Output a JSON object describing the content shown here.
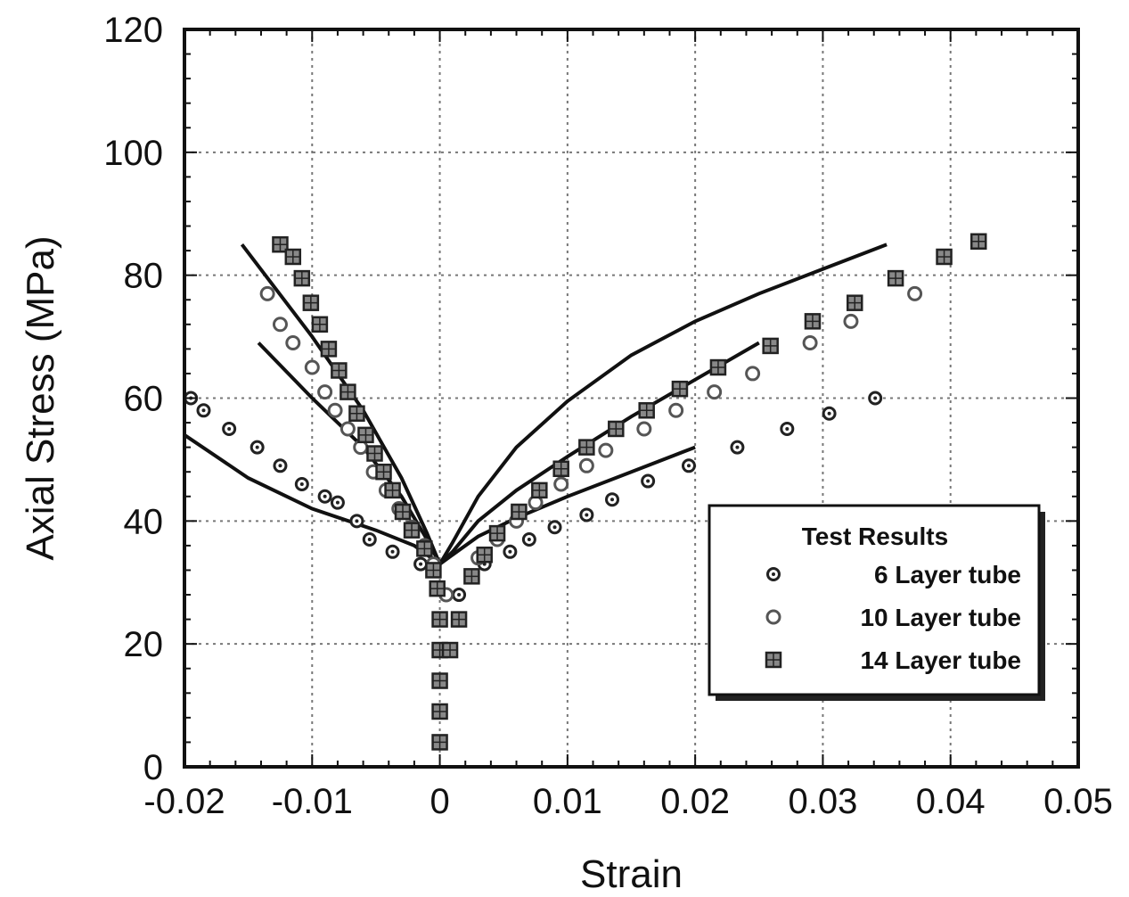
{
  "chart_data": {
    "type": "scatter",
    "xlabel": "Strain",
    "ylabel": "Axial Stress (MPa)",
    "xlim": [
      -0.02,
      0.05
    ],
    "ylim": [
      0,
      120
    ],
    "xticks": [
      -0.02,
      -0.01,
      0,
      0.01,
      0.02,
      0.03,
      0.04,
      0.05
    ],
    "xtick_labels": [
      "-0.02",
      "-0.01",
      "0",
      "0.01",
      "0.02",
      "0.03",
      "0.04",
      "0.05"
    ],
    "yticks": [
      0,
      20,
      40,
      60,
      80,
      100,
      120
    ],
    "ytick_labels": [
      "0",
      "20",
      "40",
      "60",
      "80",
      "100",
      "120"
    ],
    "grid": true,
    "legend": {
      "title": "Test Results",
      "placement": "lower-right",
      "entries": [
        "6 Layer tube",
        "10 Layer tube",
        "14 Layer tube"
      ]
    },
    "series": [
      {
        "name": "6 Layer tube",
        "marker": "dot-circle",
        "points": [
          [
            -0.0195,
            60
          ],
          [
            -0.0185,
            58
          ],
          [
            -0.0165,
            55
          ],
          [
            -0.0143,
            52
          ],
          [
            -0.0125,
            49
          ],
          [
            -0.0108,
            46
          ],
          [
            -0.009,
            44
          ],
          [
            -0.008,
            43
          ],
          [
            -0.0065,
            40
          ],
          [
            -0.0055,
            37
          ],
          [
            -0.0037,
            35
          ],
          [
            -0.0015,
            33
          ],
          [
            0.0015,
            28
          ],
          [
            0.0025,
            31
          ],
          [
            0.0035,
            33
          ],
          [
            0.0055,
            35
          ],
          [
            0.007,
            37
          ],
          [
            0.009,
            39
          ],
          [
            0.0115,
            41
          ],
          [
            0.0135,
            43.5
          ],
          [
            0.0163,
            46.5
          ],
          [
            0.0195,
            49
          ],
          [
            0.0233,
            52
          ],
          [
            0.0272,
            55
          ],
          [
            0.0305,
            57.5
          ],
          [
            0.0341,
            60
          ]
        ]
      },
      {
        "name": "10 Layer tube",
        "marker": "open-circle",
        "points": [
          [
            -0.0135,
            77
          ],
          [
            -0.0125,
            72
          ],
          [
            -0.0115,
            69
          ],
          [
            -0.01,
            65
          ],
          [
            -0.009,
            61
          ],
          [
            -0.0082,
            58
          ],
          [
            -0.0072,
            55
          ],
          [
            -0.0062,
            52
          ],
          [
            -0.0052,
            48
          ],
          [
            -0.0042,
            45
          ],
          [
            -0.0032,
            42
          ],
          [
            -0.0022,
            39
          ],
          [
            -0.0012,
            36
          ],
          [
            -0.0005,
            33
          ],
          [
            0.0005,
            28
          ],
          [
            0.0015,
            24
          ],
          [
            0.003,
            34
          ],
          [
            0.0045,
            37
          ],
          [
            0.006,
            40
          ],
          [
            0.0075,
            43
          ],
          [
            0.0095,
            46
          ],
          [
            0.0115,
            49
          ],
          [
            0.013,
            51.5
          ],
          [
            0.016,
            55
          ],
          [
            0.0185,
            58
          ],
          [
            0.0215,
            61
          ],
          [
            0.0245,
            64
          ],
          [
            0.029,
            69
          ],
          [
            0.0322,
            72.5
          ],
          [
            0.0372,
            77
          ]
        ]
      },
      {
        "name": "14 Layer tube",
        "marker": "filled-square",
        "points": [
          [
            -0.0125,
            85
          ],
          [
            -0.0115,
            83
          ],
          [
            -0.0108,
            79.5
          ],
          [
            -0.0101,
            75.5
          ],
          [
            -0.0094,
            72
          ],
          [
            -0.0087,
            68
          ],
          [
            -0.0079,
            64.5
          ],
          [
            -0.0072,
            61
          ],
          [
            -0.0065,
            57.5
          ],
          [
            -0.0058,
            54
          ],
          [
            -0.0051,
            51
          ],
          [
            -0.0044,
            48
          ],
          [
            -0.0037,
            45
          ],
          [
            -0.0029,
            41.5
          ],
          [
            -0.0022,
            38.5
          ],
          [
            -0.0012,
            35.5
          ],
          [
            -0.0005,
            32
          ],
          [
            -0.0002,
            29
          ],
          [
            0,
            24
          ],
          [
            0,
            19
          ],
          [
            0,
            14
          ],
          [
            0,
            9
          ],
          [
            0,
            4
          ],
          [
            0.0008,
            19
          ],
          [
            0.0015,
            24
          ],
          [
            0.0025,
            31
          ],
          [
            0.0035,
            34.5
          ],
          [
            0.0045,
            38
          ],
          [
            0.0062,
            41.5
          ],
          [
            0.0078,
            45
          ],
          [
            0.0095,
            48.5
          ],
          [
            0.0115,
            52
          ],
          [
            0.0138,
            55
          ],
          [
            0.0162,
            58
          ],
          [
            0.0188,
            61.5
          ],
          [
            0.0218,
            65
          ],
          [
            0.0259,
            68.5
          ],
          [
            0.0292,
            72.5
          ],
          [
            0.0325,
            75.5
          ],
          [
            0.0357,
            79.5
          ],
          [
            0.0395,
            83
          ],
          [
            0.0422,
            85.5
          ]
        ]
      }
    ],
    "fit_curves": [
      {
        "points": [
          [
            0,
            33
          ],
          [
            0.001,
            34.5
          ],
          [
            0.003,
            37.5
          ],
          [
            0.006,
            40.5
          ],
          [
            0.01,
            44
          ],
          [
            0.015,
            48
          ],
          [
            0.02,
            52
          ]
        ]
      },
      {
        "points": [
          [
            0,
            33
          ],
          [
            0.001,
            35
          ],
          [
            0.003,
            40
          ],
          [
            0.006,
            45
          ],
          [
            0.01,
            50.5
          ],
          [
            0.015,
            57
          ],
          [
            0.02,
            63
          ],
          [
            0.025,
            69
          ]
        ]
      },
      {
        "points": [
          [
            0,
            33
          ],
          [
            0.001,
            36.5
          ],
          [
            0.003,
            44
          ],
          [
            0.006,
            52
          ],
          [
            0.01,
            59.5
          ],
          [
            0.015,
            67
          ],
          [
            0.02,
            72.5
          ],
          [
            0.025,
            77
          ],
          [
            0.03,
            81
          ],
          [
            0.035,
            85
          ]
        ]
      },
      {
        "points": [
          [
            0,
            33
          ],
          [
            -0.002,
            36
          ],
          [
            -0.005,
            38.5
          ],
          [
            -0.01,
            42
          ],
          [
            -0.015,
            47
          ],
          [
            -0.02,
            54
          ]
        ]
      },
      {
        "points": [
          [
            0,
            33
          ],
          [
            -0.001,
            37
          ],
          [
            -0.003,
            44
          ],
          [
            -0.006,
            52
          ],
          [
            -0.01,
            60
          ],
          [
            -0.0142,
            69
          ]
        ]
      },
      {
        "points": [
          [
            0,
            33
          ],
          [
            -0.001,
            38
          ],
          [
            -0.003,
            47
          ],
          [
            -0.006,
            58
          ],
          [
            -0.01,
            70
          ],
          [
            -0.0155,
            85
          ]
        ]
      }
    ]
  }
}
